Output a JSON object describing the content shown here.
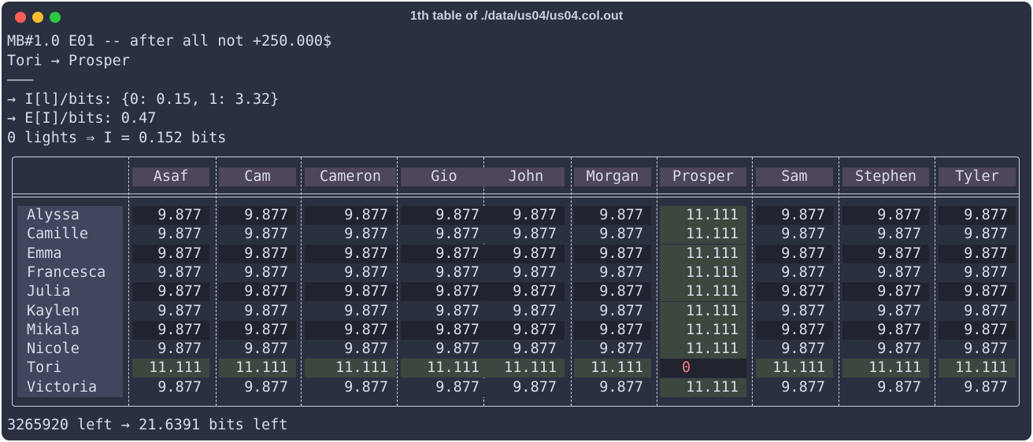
{
  "window": {
    "title": "1th table of ./data/us04/us04.col.out"
  },
  "output": {
    "header_lines": [
      "MB#1.0 E01 -- after all not +250.000$",
      "Tori → Prosper",
      "———",
      "→ I[l]/bits: {0: 0.15, 1: 3.32}",
      "→ E[I]/bits: 0.47",
      "0 lights ⇒ I = 0.152 bits"
    ],
    "footer_line": "3265920 left → 21.6391 bits left"
  },
  "table": {
    "columns": [
      "Asaf",
      "Cam",
      "Cameron",
      "Gio",
      "John",
      "Morgan",
      "Prosper",
      "Sam",
      "Stephen",
      "Tyler"
    ],
    "rows": [
      {
        "name": "Alyssa",
        "values": [
          "9.877",
          "9.877",
          "9.877",
          "9.877",
          "9.877",
          "9.877",
          "11.111",
          "9.877",
          "9.877",
          "9.877"
        ]
      },
      {
        "name": "Camille",
        "values": [
          "9.877",
          "9.877",
          "9.877",
          "9.877",
          "9.877",
          "9.877",
          "11.111",
          "9.877",
          "9.877",
          "9.877"
        ]
      },
      {
        "name": "Emma",
        "values": [
          "9.877",
          "9.877",
          "9.877",
          "9.877",
          "9.877",
          "9.877",
          "11.111",
          "9.877",
          "9.877",
          "9.877"
        ]
      },
      {
        "name": "Francesca",
        "values": [
          "9.877",
          "9.877",
          "9.877",
          "9.877",
          "9.877",
          "9.877",
          "11.111",
          "9.877",
          "9.877",
          "9.877"
        ]
      },
      {
        "name": "Julia",
        "values": [
          "9.877",
          "9.877",
          "9.877",
          "9.877",
          "9.877",
          "9.877",
          "11.111",
          "9.877",
          "9.877",
          "9.877"
        ]
      },
      {
        "name": "Kaylen",
        "values": [
          "9.877",
          "9.877",
          "9.877",
          "9.877",
          "9.877",
          "9.877",
          "11.111",
          "9.877",
          "9.877",
          "9.877"
        ]
      },
      {
        "name": "Mikala",
        "values": [
          "9.877",
          "9.877",
          "9.877",
          "9.877",
          "9.877",
          "9.877",
          "11.111",
          "9.877",
          "9.877",
          "9.877"
        ]
      },
      {
        "name": "Nicole",
        "values": [
          "9.877",
          "9.877",
          "9.877",
          "9.877",
          "9.877",
          "9.877",
          "11.111",
          "9.877",
          "9.877",
          "9.877"
        ]
      },
      {
        "name": "Tori",
        "values": [
          "11.111",
          "11.111",
          "11.111",
          "11.111",
          "11.111",
          "11.111",
          "0",
          "11.111",
          "11.111",
          "11.111"
        ]
      },
      {
        "name": "Victoria",
        "values": [
          "9.877",
          "9.877",
          "9.877",
          "9.877",
          "9.877",
          "9.877",
          "11.111",
          "9.877",
          "9.877",
          "9.877"
        ]
      }
    ]
  },
  "colors": {
    "background": "#2b3041",
    "header_cell": "#4e4659",
    "highlight_cell": "#3c473f",
    "zero_value": "#f07a7a",
    "row_label_bg": "#3f465d"
  }
}
